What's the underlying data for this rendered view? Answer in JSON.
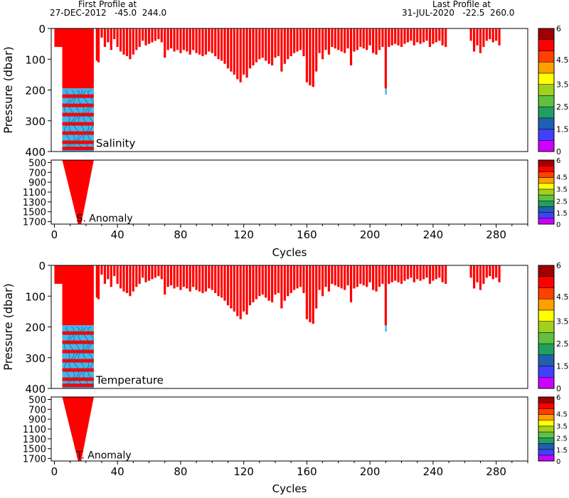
{
  "header": {
    "first_label": "First Profile at",
    "first_value": "27-DEC-2012   -45.0  244.0",
    "last_label": "Last Profile at",
    "last_value": "31-JUL-2020   -22.5  260.0"
  },
  "colors": {
    "anomaly_high": "#ff0000",
    "anomaly_low": "#3fb8f0",
    "colorbar": [
      "#cc00ff",
      "#4040ff",
      "#2060b0",
      "#20a060",
      "#60c040",
      "#a0d020",
      "#ffff00",
      "#ffa000",
      "#ff4000",
      "#ff0000",
      "#a00000"
    ]
  },
  "chart_data": [
    {
      "type": "heatmap",
      "title": "Salinity",
      "anomaly_label": "S. Anomaly",
      "xlabel": "Cycles",
      "ylabel": "Pressure (dbar)",
      "xlim": [
        -2,
        300
      ],
      "xticks": [
        0,
        40,
        80,
        120,
        160,
        200,
        240,
        280
      ],
      "upper_ylim": [
        0,
        400
      ],
      "upper_yticks": [
        0,
        100,
        200,
        300,
        400
      ],
      "lower_ylim": [
        450,
        1750
      ],
      "lower_yticks": [
        500,
        700,
        900,
        1100,
        1300,
        1500,
        1700
      ],
      "colorbar_ticks": [
        "0",
        "1",
        "1.5",
        "2",
        "2.5",
        "3",
        "3.5",
        "4",
        "4.5",
        "5",
        "6"
      ],
      "colorbar_labels_upper": [
        "0",
        "1.5",
        "2.5",
        "3.5",
        "4.5",
        "6"
      ],
      "profile_depths": {
        "early_cycles": [
          5,
          25
        ],
        "early_max_depth": 1750,
        "cycles": [
          27,
          28,
          30,
          32,
          34,
          36,
          38,
          40,
          42,
          44,
          46,
          48,
          50,
          52,
          54,
          56,
          58,
          60,
          62,
          64,
          66,
          68,
          70,
          72,
          74,
          76,
          78,
          80,
          82,
          84,
          86,
          88,
          90,
          92,
          94,
          96,
          98,
          100,
          102,
          104,
          106,
          108,
          110,
          112,
          114,
          116,
          118,
          120,
          122,
          124,
          126,
          128,
          130,
          132,
          134,
          136,
          138,
          140,
          142,
          144,
          146,
          148,
          150,
          152,
          154,
          156,
          158,
          160,
          162,
          164,
          166,
          168,
          170,
          172,
          174,
          176,
          178,
          180,
          182,
          184,
          186,
          188,
          190,
          192,
          194,
          196,
          198,
          200,
          202,
          204,
          206,
          208,
          210,
          212,
          214,
          216,
          218,
          220,
          222,
          224,
          226,
          228,
          230,
          232,
          234,
          236,
          238,
          240,
          242,
          244,
          246,
          248,
          264,
          266,
          268,
          270,
          272,
          274,
          276,
          278,
          280,
          282
        ],
        "depths": [
          105,
          110,
          30,
          60,
          45,
          70,
          35,
          60,
          75,
          85,
          90,
          100,
          85,
          70,
          60,
          40,
          55,
          50,
          45,
          40,
          35,
          45,
          95,
          70,
          65,
          75,
          70,
          80,
          70,
          75,
          85,
          70,
          80,
          85,
          90,
          85,
          75,
          80,
          90,
          100,
          105,
          115,
          130,
          140,
          150,
          165,
          175,
          150,
          160,
          130,
          120,
          110,
          100,
          95,
          105,
          115,
          120,
          95,
          90,
          140,
          115,
          100,
          90,
          80,
          75,
          70,
          90,
          175,
          185,
          190,
          140,
          80,
          100,
          70,
          85,
          60,
          65,
          70,
          75,
          80,
          65,
          120,
          75,
          70,
          60,
          65,
          70,
          55,
          80,
          85,
          70,
          60,
          195,
          60,
          55,
          50,
          55,
          60,
          50,
          45,
          40,
          55,
          45,
          50,
          45,
          40,
          60,
          50,
          45,
          40,
          55,
          60,
          40,
          75,
          55,
          80,
          60,
          40,
          35,
          45,
          40,
          55
        ]
      }
    },
    {
      "type": "heatmap",
      "title": "Temperature",
      "anomaly_label": "T. Anomaly",
      "xlabel": "Cycles",
      "ylabel": "Pressure (dbar)",
      "xlim": [
        -2,
        300
      ],
      "xticks": [
        0,
        40,
        80,
        120,
        160,
        200,
        240,
        280
      ],
      "upper_ylim": [
        0,
        400
      ],
      "upper_yticks": [
        0,
        100,
        200,
        300,
        400
      ],
      "lower_ylim": [
        450,
        1750
      ],
      "lower_yticks": [
        500,
        700,
        900,
        1100,
        1300,
        1500,
        1700
      ],
      "colorbar_ticks": [
        "0",
        "1",
        "1.5",
        "2",
        "2.5",
        "3",
        "3.5",
        "4",
        "4.5",
        "5",
        "6"
      ],
      "colorbar_labels_upper": [
        "0",
        "1.5",
        "2.5",
        "3.5",
        "4.5",
        "6"
      ]
    }
  ]
}
